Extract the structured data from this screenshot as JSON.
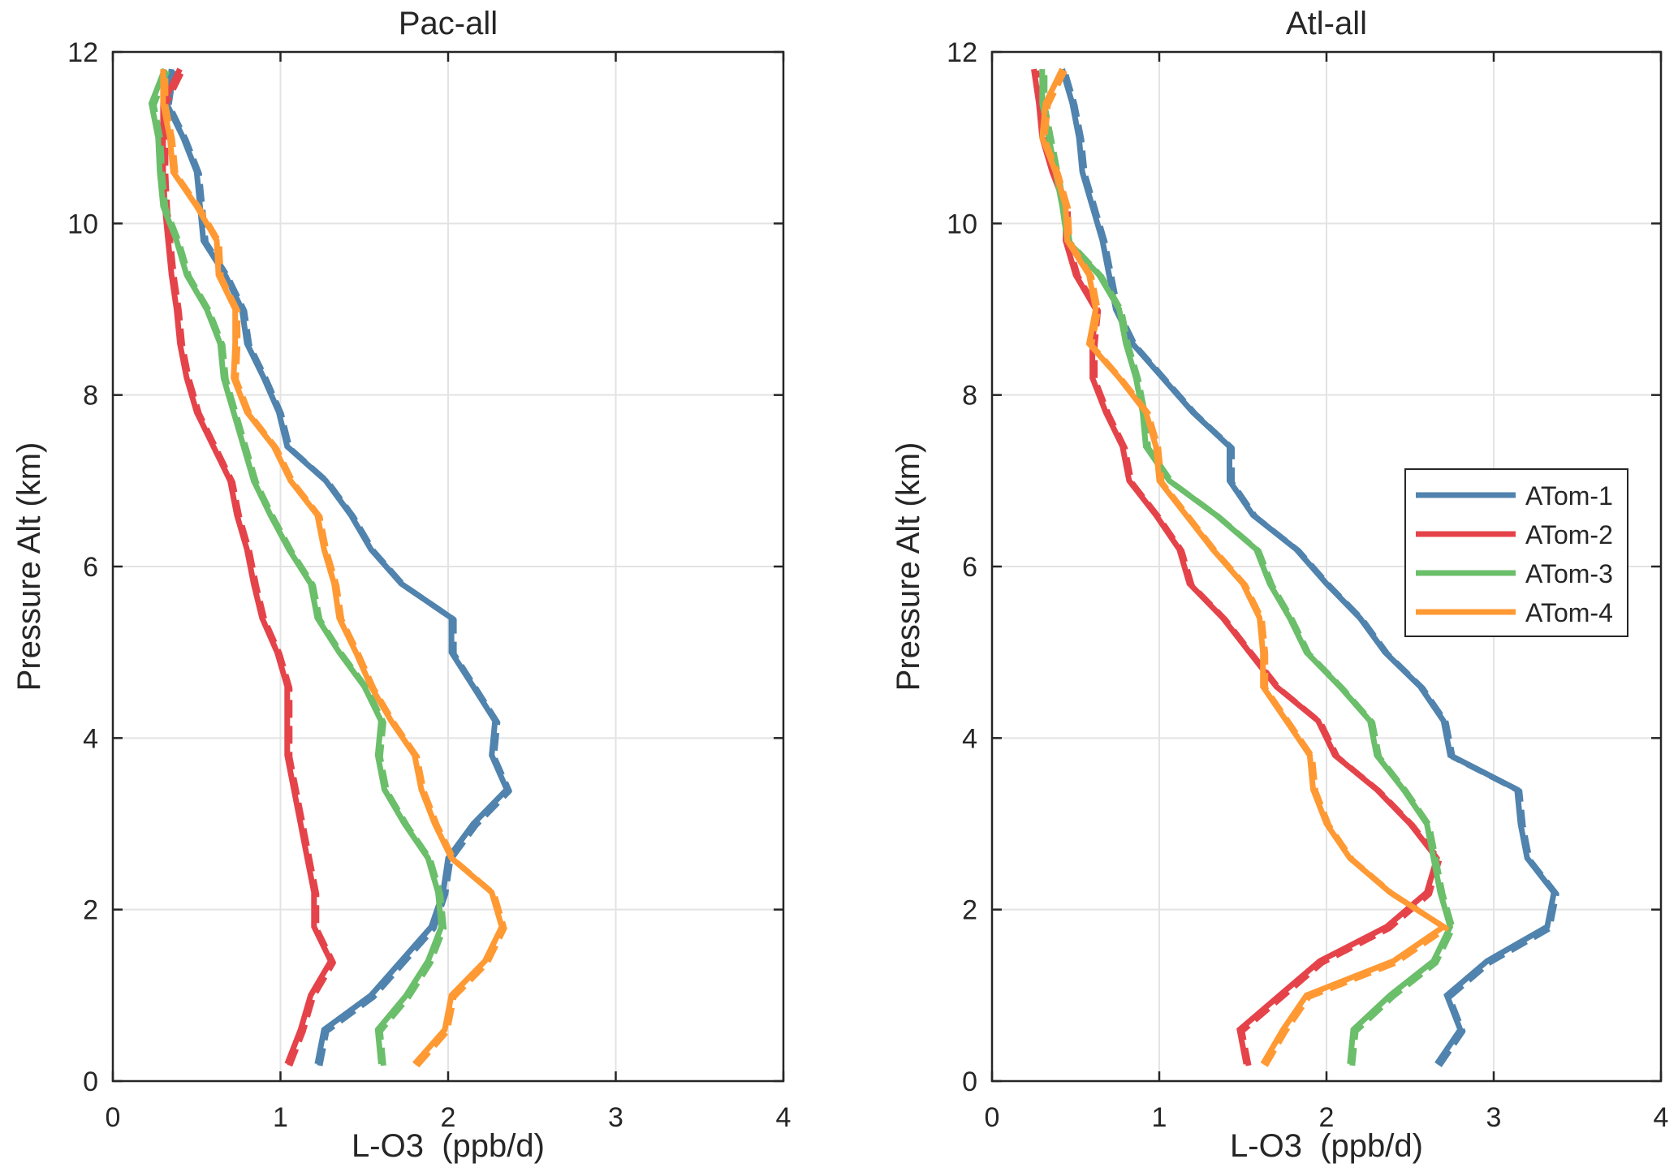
{
  "chart_data": [
    {
      "type": "line",
      "title": "Pac-all",
      "xlabel": "L-O3  (ppb/d)",
      "ylabel": "Pressure Alt (km)",
      "xlim": [
        0,
        4
      ],
      "ylim": [
        0,
        12
      ],
      "xticks": [
        0,
        1,
        2,
        3,
        4
      ],
      "yticks": [
        0,
        2,
        4,
        6,
        8,
        10,
        12
      ],
      "grid": true,
      "legend": null,
      "series": [
        {
          "name": "ATom-1",
          "color": "#5083AD",
          "style": "solid",
          "points": [
            [
              1.22,
              0.2
            ],
            [
              1.26,
              0.6
            ],
            [
              1.54,
              1.0
            ],
            [
              1.72,
              1.4
            ],
            [
              1.9,
              1.8
            ],
            [
              1.97,
              2.2
            ],
            [
              2.0,
              2.6
            ],
            [
              2.15,
              3.0
            ],
            [
              2.35,
              3.4
            ],
            [
              2.26,
              3.8
            ],
            [
              2.28,
              4.2
            ],
            [
              2.15,
              4.6
            ],
            [
              2.02,
              5.0
            ],
            [
              2.02,
              5.4
            ],
            [
              1.72,
              5.8
            ],
            [
              1.54,
              6.2
            ],
            [
              1.42,
              6.6
            ],
            [
              1.27,
              7.0
            ],
            [
              1.04,
              7.4
            ],
            [
              0.99,
              7.8
            ],
            [
              0.9,
              8.2
            ],
            [
              0.8,
              8.6
            ],
            [
              0.77,
              9.0
            ],
            [
              0.67,
              9.4
            ],
            [
              0.54,
              9.8
            ],
            [
              0.52,
              10.2
            ],
            [
              0.5,
              10.6
            ],
            [
              0.42,
              11.0
            ],
            [
              0.32,
              11.4
            ],
            [
              0.35,
              11.8
            ]
          ]
        },
        {
          "name": "ATom-2",
          "color": "#E5434A",
          "style": "solid",
          "points": [
            [
              1.04,
              0.2
            ],
            [
              1.12,
              0.6
            ],
            [
              1.18,
              1.0
            ],
            [
              1.3,
              1.4
            ],
            [
              1.2,
              1.8
            ],
            [
              1.2,
              2.2
            ],
            [
              1.16,
              2.6
            ],
            [
              1.12,
              3.0
            ],
            [
              1.08,
              3.4
            ],
            [
              1.04,
              3.8
            ],
            [
              1.04,
              4.2
            ],
            [
              1.04,
              4.6
            ],
            [
              0.98,
              5.0
            ],
            [
              0.89,
              5.4
            ],
            [
              0.84,
              5.8
            ],
            [
              0.8,
              6.2
            ],
            [
              0.74,
              6.6
            ],
            [
              0.7,
              7.0
            ],
            [
              0.6,
              7.4
            ],
            [
              0.5,
              7.8
            ],
            [
              0.44,
              8.2
            ],
            [
              0.4,
              8.6
            ],
            [
              0.38,
              9.0
            ],
            [
              0.35,
              9.4
            ],
            [
              0.33,
              9.8
            ],
            [
              0.31,
              10.2
            ],
            [
              0.3,
              10.6
            ],
            [
              0.3,
              11.0
            ],
            [
              0.3,
              11.4
            ],
            [
              0.4,
              11.8
            ]
          ]
        },
        {
          "name": "ATom-3",
          "color": "#6BBE6A",
          "style": "solid",
          "points": [
            [
              1.6,
              0.2
            ],
            [
              1.58,
              0.6
            ],
            [
              1.75,
              1.0
            ],
            [
              1.88,
              1.4
            ],
            [
              1.96,
              1.8
            ],
            [
              1.94,
              2.2
            ],
            [
              1.88,
              2.6
            ],
            [
              1.74,
              3.0
            ],
            [
              1.62,
              3.4
            ],
            [
              1.58,
              3.8
            ],
            [
              1.6,
              4.2
            ],
            [
              1.5,
              4.6
            ],
            [
              1.35,
              5.0
            ],
            [
              1.22,
              5.4
            ],
            [
              1.18,
              5.8
            ],
            [
              1.05,
              6.2
            ],
            [
              0.94,
              6.6
            ],
            [
              0.84,
              7.0
            ],
            [
              0.78,
              7.4
            ],
            [
              0.72,
              7.8
            ],
            [
              0.66,
              8.2
            ],
            [
              0.64,
              8.6
            ],
            [
              0.56,
              9.0
            ],
            [
              0.44,
              9.4
            ],
            [
              0.38,
              9.8
            ],
            [
              0.3,
              10.2
            ],
            [
              0.28,
              10.6
            ],
            [
              0.27,
              11.0
            ],
            [
              0.23,
              11.4
            ],
            [
              0.31,
              11.8
            ]
          ]
        },
        {
          "name": "ATom-4",
          "color": "#FF9933",
          "style": "solid",
          "points": [
            [
              1.8,
              0.2
            ],
            [
              1.98,
              0.6
            ],
            [
              2.02,
              1.0
            ],
            [
              2.22,
              1.4
            ],
            [
              2.32,
              1.8
            ],
            [
              2.26,
              2.2
            ],
            [
              2.02,
              2.6
            ],
            [
              1.92,
              3.0
            ],
            [
              1.84,
              3.4
            ],
            [
              1.8,
              3.8
            ],
            [
              1.66,
              4.2
            ],
            [
              1.54,
              4.6
            ],
            [
              1.45,
              5.0
            ],
            [
              1.35,
              5.4
            ],
            [
              1.32,
              5.8
            ],
            [
              1.26,
              6.2
            ],
            [
              1.22,
              6.6
            ],
            [
              1.06,
              7.0
            ],
            [
              0.96,
              7.4
            ],
            [
              0.8,
              7.8
            ],
            [
              0.72,
              8.2
            ],
            [
              0.73,
              8.6
            ],
            [
              0.73,
              9.0
            ],
            [
              0.63,
              9.4
            ],
            [
              0.62,
              9.8
            ],
            [
              0.5,
              10.2
            ],
            [
              0.36,
              10.6
            ],
            [
              0.34,
              11.0
            ],
            [
              0.3,
              11.4
            ],
            [
              0.3,
              11.8
            ]
          ]
        }
      ]
    },
    {
      "type": "line",
      "title": "Atl-all",
      "xlabel": "L-O3  (ppb/d)",
      "ylabel": "Pressure Alt (km)",
      "xlim": [
        0,
        4
      ],
      "ylim": [
        0,
        12
      ],
      "xticks": [
        0,
        1,
        2,
        3,
        4
      ],
      "yticks": [
        0,
        2,
        4,
        6,
        8,
        10,
        12
      ],
      "grid": true,
      "legend": "right",
      "series": [
        {
          "name": "ATom-1",
          "color": "#5083AD",
          "style": "solid",
          "points": [
            [
              2.66,
              0.2
            ],
            [
              2.8,
              0.6
            ],
            [
              2.72,
              1.0
            ],
            [
              2.96,
              1.4
            ],
            [
              3.32,
              1.8
            ],
            [
              3.36,
              2.2
            ],
            [
              3.2,
              2.6
            ],
            [
              3.16,
              3.0
            ],
            [
              3.14,
              3.4
            ],
            [
              2.74,
              3.8
            ],
            [
              2.7,
              4.2
            ],
            [
              2.56,
              4.6
            ],
            [
              2.35,
              5.0
            ],
            [
              2.2,
              5.4
            ],
            [
              2.0,
              5.8
            ],
            [
              1.82,
              6.2
            ],
            [
              1.56,
              6.6
            ],
            [
              1.42,
              7.0
            ],
            [
              1.42,
              7.4
            ],
            [
              1.2,
              7.8
            ],
            [
              1.02,
              8.2
            ],
            [
              0.84,
              8.6
            ],
            [
              0.74,
              9.0
            ],
            [
              0.7,
              9.4
            ],
            [
              0.66,
              9.8
            ],
            [
              0.6,
              10.2
            ],
            [
              0.54,
              10.6
            ],
            [
              0.52,
              11.0
            ],
            [
              0.48,
              11.4
            ],
            [
              0.42,
              11.8
            ]
          ]
        },
        {
          "name": "ATom-2",
          "color": "#E5434A",
          "style": "solid",
          "points": [
            [
              1.52,
              0.2
            ],
            [
              1.48,
              0.6
            ],
            [
              1.72,
              1.0
            ],
            [
              1.96,
              1.4
            ],
            [
              2.36,
              1.8
            ],
            [
              2.6,
              2.2
            ],
            [
              2.66,
              2.6
            ],
            [
              2.5,
              3.0
            ],
            [
              2.3,
              3.4
            ],
            [
              2.05,
              3.8
            ],
            [
              1.95,
              4.2
            ],
            [
              1.7,
              4.6
            ],
            [
              1.54,
              5.0
            ],
            [
              1.38,
              5.4
            ],
            [
              1.18,
              5.8
            ],
            [
              1.12,
              6.2
            ],
            [
              0.98,
              6.6
            ],
            [
              0.82,
              7.0
            ],
            [
              0.78,
              7.4
            ],
            [
              0.68,
              7.8
            ],
            [
              0.6,
              8.2
            ],
            [
              0.6,
              8.6
            ],
            [
              0.62,
              9.0
            ],
            [
              0.5,
              9.4
            ],
            [
              0.44,
              9.8
            ],
            [
              0.44,
              10.2
            ],
            [
              0.36,
              10.6
            ],
            [
              0.3,
              11.0
            ],
            [
              0.28,
              11.4
            ],
            [
              0.25,
              11.8
            ]
          ]
        },
        {
          "name": "ATom-3",
          "color": "#6BBE6A",
          "style": "solid",
          "points": [
            [
              2.14,
              0.2
            ],
            [
              2.16,
              0.6
            ],
            [
              2.38,
              1.0
            ],
            [
              2.64,
              1.4
            ],
            [
              2.74,
              1.8
            ],
            [
              2.68,
              2.2
            ],
            [
              2.64,
              2.6
            ],
            [
              2.6,
              3.0
            ],
            [
              2.46,
              3.4
            ],
            [
              2.3,
              3.8
            ],
            [
              2.26,
              4.2
            ],
            [
              2.08,
              4.6
            ],
            [
              1.88,
              5.0
            ],
            [
              1.78,
              5.4
            ],
            [
              1.66,
              5.8
            ],
            [
              1.58,
              6.2
            ],
            [
              1.34,
              6.6
            ],
            [
              1.06,
              7.0
            ],
            [
              0.92,
              7.4
            ],
            [
              0.9,
              7.8
            ],
            [
              0.86,
              8.2
            ],
            [
              0.8,
              8.6
            ],
            [
              0.76,
              9.0
            ],
            [
              0.64,
              9.4
            ],
            [
              0.45,
              9.8
            ],
            [
              0.42,
              10.2
            ],
            [
              0.38,
              10.6
            ],
            [
              0.34,
              11.0
            ],
            [
              0.3,
              11.4
            ],
            [
              0.3,
              11.8
            ]
          ]
        },
        {
          "name": "ATom-4",
          "color": "#FF9933",
          "style": "solid",
          "points": [
            [
              1.62,
              0.2
            ],
            [
              1.74,
              0.6
            ],
            [
              1.88,
              1.0
            ],
            [
              2.4,
              1.4
            ],
            [
              2.7,
              1.8
            ],
            [
              2.38,
              2.2
            ],
            [
              2.14,
              2.6
            ],
            [
              2.0,
              3.0
            ],
            [
              1.92,
              3.4
            ],
            [
              1.9,
              3.8
            ],
            [
              1.76,
              4.2
            ],
            [
              1.62,
              4.6
            ],
            [
              1.62,
              5.0
            ],
            [
              1.6,
              5.4
            ],
            [
              1.5,
              5.8
            ],
            [
              1.32,
              6.2
            ],
            [
              1.16,
              6.6
            ],
            [
              1.0,
              7.0
            ],
            [
              0.98,
              7.4
            ],
            [
              0.92,
              7.8
            ],
            [
              0.76,
              8.2
            ],
            [
              0.58,
              8.6
            ],
            [
              0.62,
              9.0
            ],
            [
              0.58,
              9.4
            ],
            [
              0.45,
              9.8
            ],
            [
              0.44,
              10.2
            ],
            [
              0.38,
              10.6
            ],
            [
              0.3,
              11.0
            ],
            [
              0.32,
              11.4
            ],
            [
              0.42,
              11.8
            ]
          ]
        }
      ]
    }
  ],
  "legend": {
    "items": [
      {
        "label": "ATom-1",
        "color": "#5083AD"
      },
      {
        "label": "ATom-2",
        "color": "#E5434A"
      },
      {
        "label": "ATom-3",
        "color": "#6BBE6A"
      },
      {
        "label": "ATom-4",
        "color": "#FF9933"
      }
    ]
  }
}
